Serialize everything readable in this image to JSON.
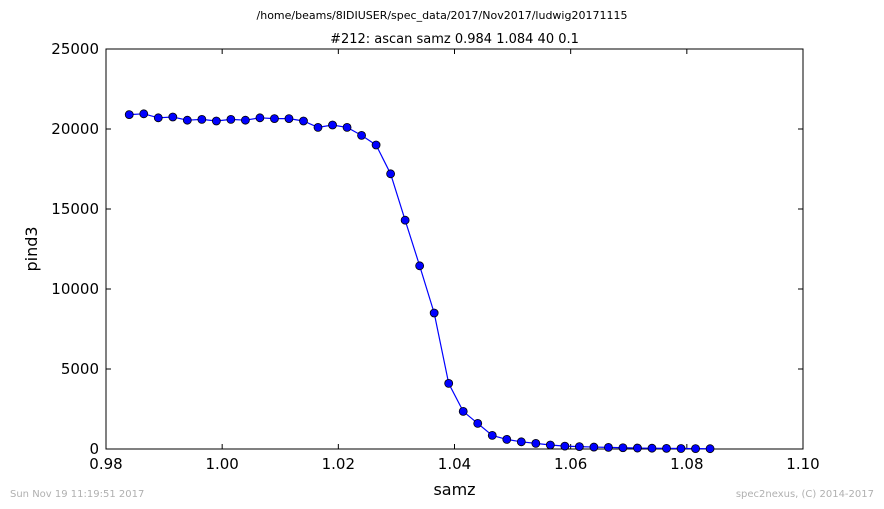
{
  "header": {
    "path": "/home/beams/8IDIUSER/spec_data/2017/Nov2017/ludwig20171115"
  },
  "footer": {
    "left": "Sun Nov 19 11:19:51 2017",
    "right": "spec2nexus, (C) 2014-2017"
  },
  "chart_data": {
    "type": "line",
    "title": "#212: ascan  samz 0.984 1.084  40 0.1",
    "xlabel": "samz",
    "ylabel": "pind3",
    "xlim": [
      0.98,
      1.1
    ],
    "ylim": [
      0,
      25000
    ],
    "x_ticks": [
      "0.98",
      "1.00",
      "1.02",
      "1.04",
      "1.06",
      "1.08",
      "1.10"
    ],
    "x_tick_values": [
      0.98,
      1.0,
      1.02,
      1.04,
      1.06,
      1.08,
      1.1
    ],
    "y_ticks": [
      "0",
      "5000",
      "10000",
      "15000",
      "20000",
      "25000"
    ],
    "y_tick_values": [
      0,
      5000,
      10000,
      15000,
      20000,
      25000
    ],
    "grid": false,
    "line_color": "#0000ff",
    "marker_color": "#0000ff",
    "series": [
      {
        "x": [
          0.984,
          0.9865,
          0.989,
          0.9915,
          0.994,
          0.9965,
          0.999,
          1.0015,
          1.004,
          1.0065,
          1.009,
          1.0115,
          1.014,
          1.0165,
          1.019,
          1.0215,
          1.024,
          1.0265,
          1.029,
          1.0315,
          1.034,
          1.0365,
          1.039,
          1.0415,
          1.044,
          1.0465,
          1.049,
          1.0515,
          1.054,
          1.0565,
          1.059,
          1.0615,
          1.064,
          1.0665,
          1.069,
          1.0715,
          1.074,
          1.0765,
          1.079,
          1.0815,
          1.084
        ],
        "y": [
          20900,
          20950,
          20700,
          20750,
          20550,
          20600,
          20500,
          20600,
          20550,
          20700,
          20650,
          20650,
          20500,
          20100,
          20250,
          20100,
          19600,
          19000,
          17200,
          14300,
          11450,
          8500,
          4100,
          2350,
          1600,
          850,
          600,
          450,
          350,
          250,
          180,
          150,
          120,
          100,
          80,
          60,
          50,
          40,
          30,
          25,
          20
        ]
      }
    ]
  }
}
